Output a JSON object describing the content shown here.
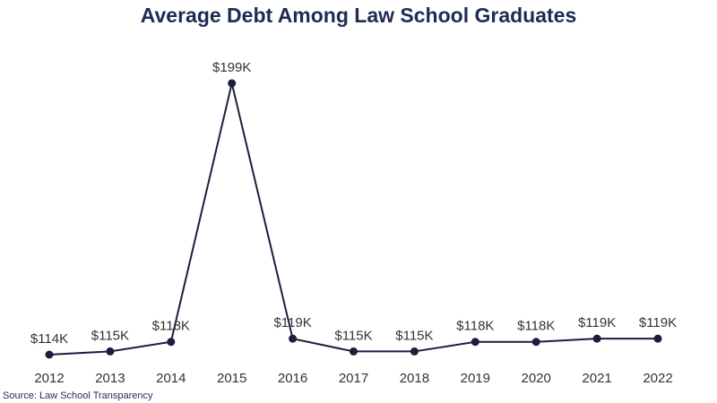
{
  "chart_data": {
    "type": "line",
    "title": "Average Debt Among Law School Graduates",
    "categories": [
      "2012",
      "2013",
      "2014",
      "2015",
      "2016",
      "2017",
      "2018",
      "2019",
      "2020",
      "2021",
      "2022"
    ],
    "values": [
      114,
      115,
      118,
      199,
      119,
      115,
      115,
      118,
      118,
      119,
      119
    ],
    "value_labels": [
      "$114K",
      "$115K",
      "$118K",
      "$199K",
      "$119K",
      "$115K",
      "$115K",
      "$118K",
      "$118K",
      "$119K",
      "$119K"
    ],
    "color": "#1a1f3d",
    "source": "Source: Law School Transparency"
  }
}
